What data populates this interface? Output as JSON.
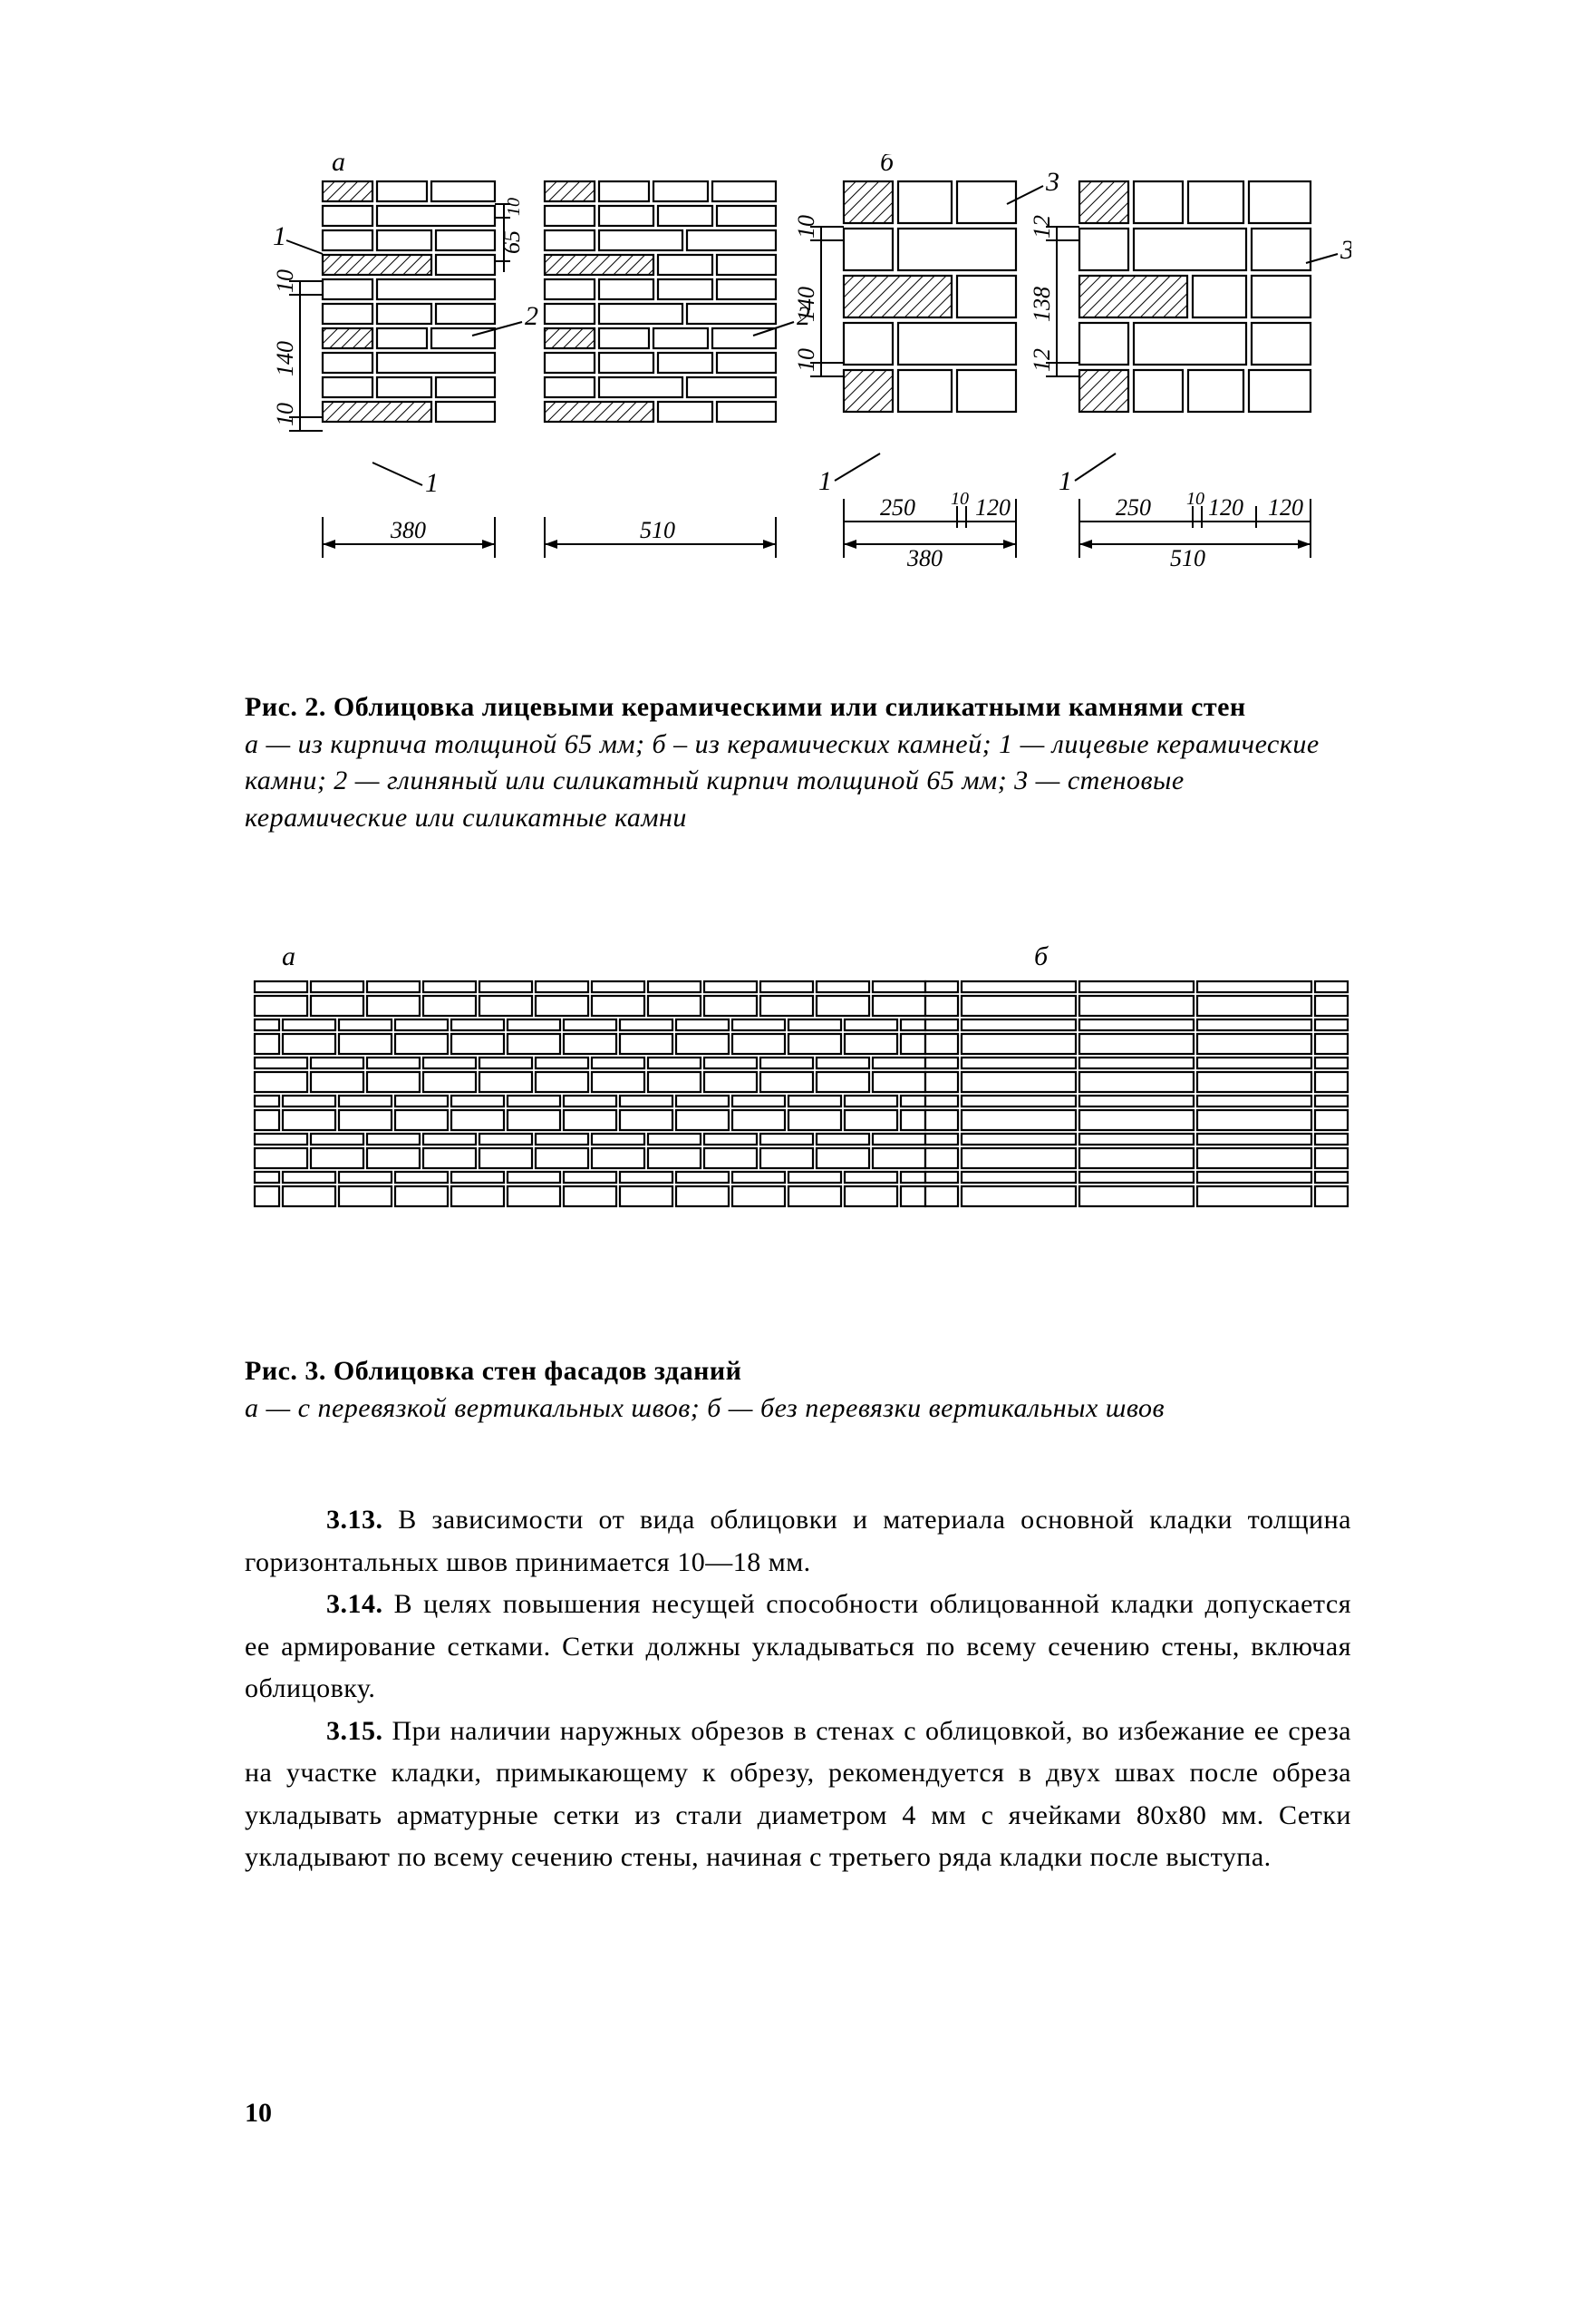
{
  "page_number": "10",
  "colors": {
    "background": "#ffffff",
    "ink": "#000000"
  },
  "fig2": {
    "title": "Рис. 2. Облицовка лицевыми керамическими или силикатными камнями стен",
    "desc": "а — из кирпича толщиной 65 мм; б – из керамических камней; 1 — лицевые керамические камни; 2 — глиняный или силикатный кирпич толщиной 65 мм; 3 — стеновые керамические или силикатные камни",
    "panel_labels": {
      "a": "а",
      "b": "б"
    },
    "callouts": [
      "1",
      "2",
      "3"
    ],
    "dims": {
      "w_a1": "380",
      "w_a2": "510",
      "w_b1_seg1": "250",
      "w_b1_seg2": "120",
      "w_b1_gap": "10",
      "w_b1_total": "380",
      "w_b2_seg1": "250",
      "w_b2_seg2": "120",
      "w_b2_seg3": "120",
      "w_b2_gap": "10",
      "w_b2_total": "510",
      "v_a_seg1": "10",
      "v_a_seg2": "140",
      "v_a_seg3": "10",
      "v_a_small": "65",
      "v_a_small2": "10",
      "v_b_seg1": "10",
      "v_b_seg2": "140",
      "v_b_seg3": "10",
      "v_b2_seg1": "12",
      "v_b2_seg2": "138",
      "v_b2_seg3": "12"
    },
    "style": {
      "stroke": "#000000",
      "stroke_width": 2.2,
      "hatch_spacing": 8,
      "hatch_angle": 45,
      "font_size_dim": 26,
      "font_size_label": 30
    },
    "type": "technical-drawing",
    "panels": {
      "a1": {
        "width_u": 190,
        "brick_h": 22,
        "joint_w": 5,
        "faced_col_w": 60,
        "rows": [
          {
            "hatch": true,
            "cells": [
              60,
              60,
              70
            ]
          },
          {
            "hatch": false,
            "cells": [
              60,
              130
            ]
          },
          {
            "hatch": false,
            "cells": [
              60,
              65,
              65
            ]
          },
          {
            "hatch": true,
            "cells": [
              125,
              65
            ]
          },
          {
            "hatch": false,
            "cells": [
              60,
              130
            ]
          },
          {
            "hatch": false,
            "cells": [
              60,
              65,
              65
            ]
          },
          {
            "hatch": true,
            "cells": [
              60,
              60,
              70
            ]
          },
          {
            "hatch": false,
            "cells": [
              60,
              130
            ]
          },
          {
            "hatch": false,
            "cells": [
              60,
              65,
              65
            ]
          },
          {
            "hatch": true,
            "cells": [
              125,
              65
            ]
          }
        ]
      },
      "a2": {
        "width_u": 255,
        "brick_h": 22,
        "joint_w": 5,
        "rows": [
          {
            "hatch": true,
            "cells": [
              60,
              60,
              65,
              70
            ]
          },
          {
            "hatch": false,
            "cells": [
              60,
              65,
              65,
              65
            ]
          },
          {
            "hatch": false,
            "cells": [
              60,
              97,
              98
            ]
          },
          {
            "hatch": true,
            "cells": [
              125,
              65,
              65
            ]
          },
          {
            "hatch": false,
            "cells": [
              60,
              65,
              65,
              65
            ]
          },
          {
            "hatch": false,
            "cells": [
              60,
              97,
              98
            ]
          },
          {
            "hatch": true,
            "cells": [
              60,
              60,
              65,
              70
            ]
          },
          {
            "hatch": false,
            "cells": [
              60,
              65,
              65,
              65
            ]
          },
          {
            "hatch": false,
            "cells": [
              60,
              97,
              98
            ]
          },
          {
            "hatch": true,
            "cells": [
              125,
              65,
              65
            ]
          }
        ]
      },
      "b1": {
        "width_u": 190,
        "brick_h": 46,
        "joint_w": 6,
        "rows": [
          {
            "hatch": true,
            "cells": [
              60,
              65,
              65
            ]
          },
          {
            "hatch": false,
            "cells": [
              60,
              130
            ]
          },
          {
            "hatch": true,
            "cells": [
              125,
              65
            ]
          },
          {
            "hatch": false,
            "cells": [
              60,
              130
            ]
          },
          {
            "hatch": true,
            "cells": [
              60,
              65,
              65
            ]
          }
        ]
      },
      "b2": {
        "width_u": 255,
        "brick_h": 46,
        "joint_w": 6,
        "rows": [
          {
            "hatch": true,
            "cells": [
              60,
              60,
              67,
              68
            ]
          },
          {
            "hatch": false,
            "cells": [
              60,
              130,
              65
            ]
          },
          {
            "hatch": true,
            "cells": [
              125,
              65,
              65
            ]
          },
          {
            "hatch": false,
            "cells": [
              60,
              130,
              65
            ]
          },
          {
            "hatch": true,
            "cells": [
              60,
              60,
              67,
              68
            ]
          }
        ]
      }
    }
  },
  "fig3": {
    "title": "Рис. 3. Облицовка стен фасадов зданий",
    "desc": "а — с перевязкой вертикальных швов; б — без перевязки вертикальных швов",
    "panel_labels": {
      "a": "а",
      "b": "б"
    },
    "type": "technical-drawing",
    "style": {
      "stroke": "#000000",
      "stroke_width": 2.2
    },
    "panel_a": {
      "brick_h": 22,
      "small_h": 12,
      "gap": 4,
      "rows": [
        {
          "h": "small",
          "offset": false
        },
        {
          "h": "big",
          "offset": false
        },
        {
          "h": "small",
          "offset": true
        },
        {
          "h": "big",
          "offset": true
        },
        {
          "h": "small",
          "offset": false
        },
        {
          "h": "big",
          "offset": false
        },
        {
          "h": "small",
          "offset": true
        },
        {
          "h": "big",
          "offset": true
        },
        {
          "h": "small",
          "offset": false
        },
        {
          "h": "big",
          "offset": false
        },
        {
          "h": "small",
          "offset": true
        },
        {
          "h": "big",
          "offset": true
        }
      ],
      "unit_w": 62,
      "cols": 12
    },
    "panel_b": {
      "brick_h": 22,
      "small_h": 12,
      "gap": 4,
      "rows": 12,
      "pattern": [
        40,
        130,
        130,
        130,
        40
      ],
      "alt_small_to_big": true
    }
  },
  "paragraphs": {
    "p313": {
      "num": "3.13.",
      "text": " В зависимости от вида облицовки и материала основной кладки толщина горизонтальных швов принимается 10—18 мм."
    },
    "p314": {
      "num": "3.14.",
      "text": " В целях повышения несущей способности облицованной кладки допускается ее армирование сетками. Сетки должны укладываться по всему сечению стены, включая облицовку."
    },
    "p315": {
      "num": "3.15.",
      "text": " При наличии наружных обрезов в стенах с облицовкой, во избежание ее среза на участке кладки, примыкающему к обрезу, рекомендуется в двух швах после обреза укладывать арматурные сетки из стали диаметром 4 мм с ячейками 80х80 мм. Сетки укладывают по всему сечению стены, начиная с третьего ряда кладки после выступа."
    }
  }
}
